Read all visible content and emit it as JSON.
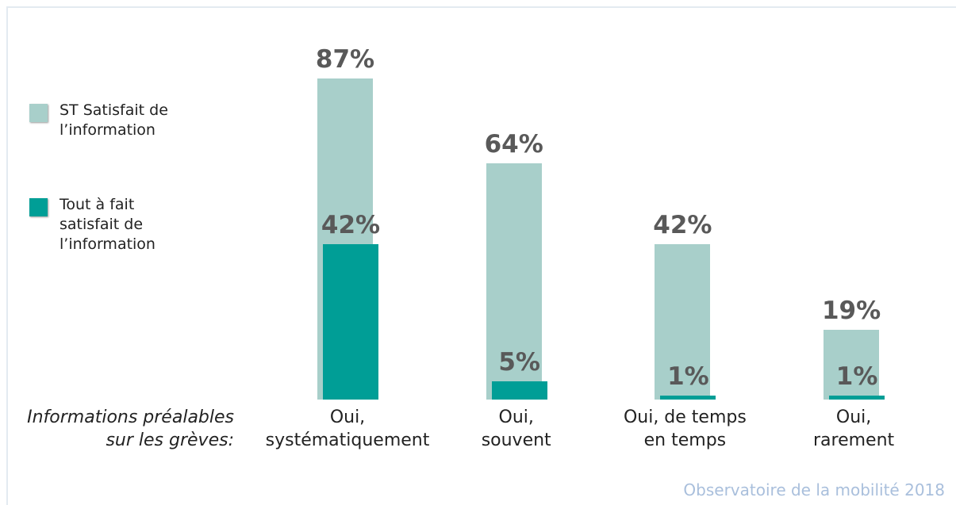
{
  "chart_data": {
    "type": "bar",
    "x_label": "Informations préalables\nsur les grèves:",
    "categories": [
      "Oui,\nsystématiquement",
      "Oui,\nsouvent",
      "Oui, de temps\nen temps",
      "Oui,\nrarement"
    ],
    "series": [
      {
        "name": "ST Satisfait de\nl’information",
        "color": "#a8cfca",
        "values": [
          87,
          64,
          42,
          19
        ],
        "value_labels": [
          "87%",
          "64%",
          "42%",
          "19%"
        ]
      },
      {
        "name": "Tout à fait\nsatisfait de\nl’information",
        "color": "#009e96",
        "values": [
          42,
          5,
          1,
          1
        ],
        "value_labels": [
          "42%",
          "5%",
          "1%",
          "1%"
        ]
      }
    ],
    "ylim": [
      0,
      100
    ],
    "source": "Observatoire de la mobilité 2018"
  }
}
